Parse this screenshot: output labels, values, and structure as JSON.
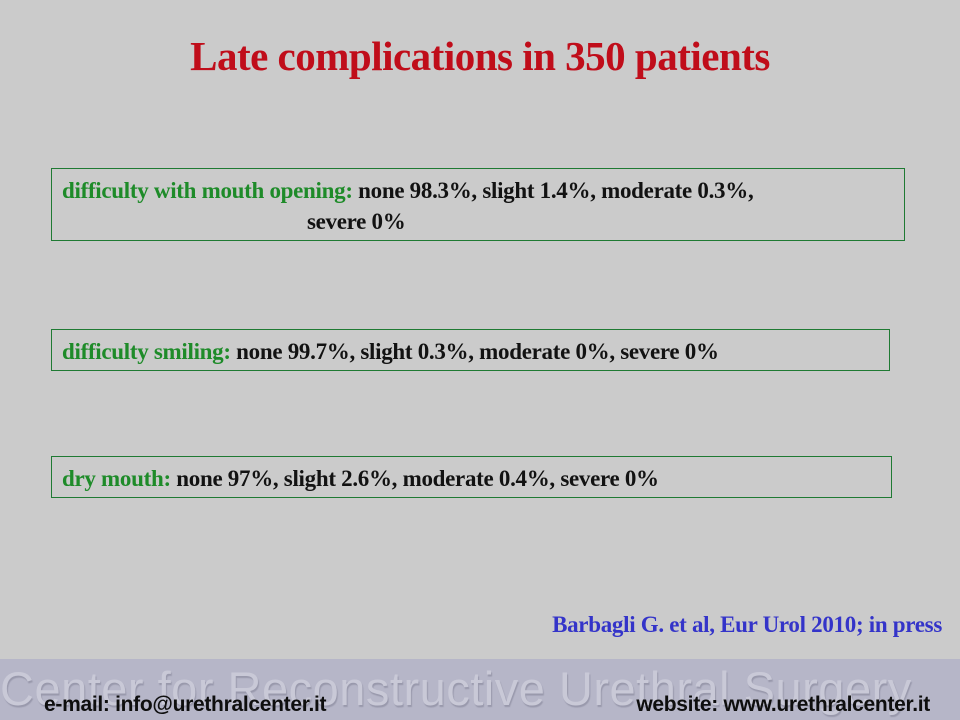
{
  "slide": {
    "title": "Late complications in 350 patients",
    "colors": {
      "slide_background": "#cbcbcb",
      "title_red": "#c00d1a",
      "label_green": "#1e8b29",
      "box_border_green": "#1f7a33",
      "body_text": "#121212",
      "citation_blue": "#3434c9",
      "footer_band": "#b6b6c8",
      "watermark_gray": "#c9c9d7"
    },
    "boxes": [
      {
        "label": "difficulty with mouth opening:",
        "values_line1": " none 98.3%, slight 1.4%, moderate 0.3%,",
        "values_line2": "severe 0%",
        "data": {
          "none": "98.3%",
          "slight": "1.4%",
          "moderate": "0.3%",
          "severe": "0%"
        }
      },
      {
        "label": "difficulty smiling:",
        "values": " none 99.7%, slight 0.3%, moderate 0%, severe 0%",
        "data": {
          "none": "99.7%",
          "slight": "0.3%",
          "moderate": "0%",
          "severe": "0%"
        }
      },
      {
        "label": "dry mouth:",
        "values": " none 97%, slight 2.6%, moderate 0.4%, severe 0%",
        "data": {
          "none": "97%",
          "slight": "2.6%",
          "moderate": "0.4%",
          "severe": "0%"
        }
      }
    ],
    "citation": "Barbagli G. et al, Eur Urol 2010; in press",
    "footer": {
      "watermark": "Center for Reconstructive Urethral Surgery",
      "email": "e-mail: info@urethralcenter.it",
      "website": "website: www.urethralcenter.it"
    }
  }
}
